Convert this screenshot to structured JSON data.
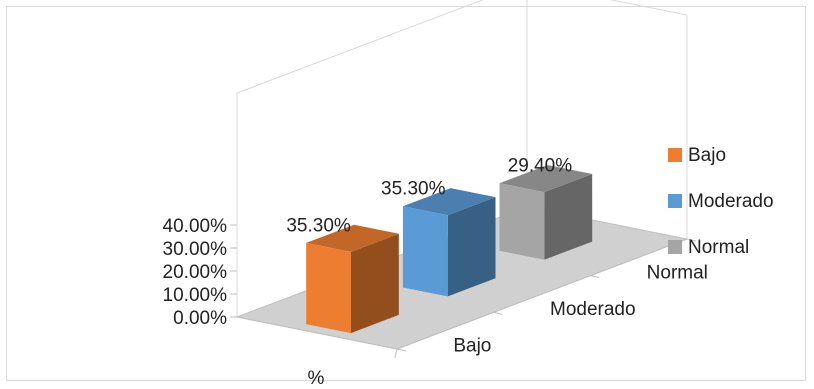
{
  "chart_data": {
    "type": "bar",
    "style": "3d-clustered-depth",
    "x_categories": [
      "%"
    ],
    "depth_categories": [
      "Bajo",
      "Moderado",
      "Normal"
    ],
    "series": [
      {
        "name": "Bajo",
        "values": [
          35.3
        ],
        "data_label": "35.30%",
        "color": "#ED7D31"
      },
      {
        "name": "Moderado",
        "values": [
          35.3
        ],
        "data_label": "35.30%",
        "color": "#5B9BD5"
      },
      {
        "name": "Normal",
        "values": [
          29.4
        ],
        "data_label": "29.40%",
        "color": "#A5A5A5"
      }
    ],
    "y_ticks": [
      "0.00%",
      "10.00%",
      "20.00%",
      "30.00%",
      "40.00%"
    ],
    "y_tick_values": [
      0,
      10,
      20,
      30,
      40
    ],
    "ylim": [
      0,
      40
    ],
    "legend": {
      "position": "right",
      "entries": [
        "Bajo",
        "Moderado",
        "Normal"
      ]
    },
    "grid": false,
    "floor_color": "#D0D0D0"
  }
}
